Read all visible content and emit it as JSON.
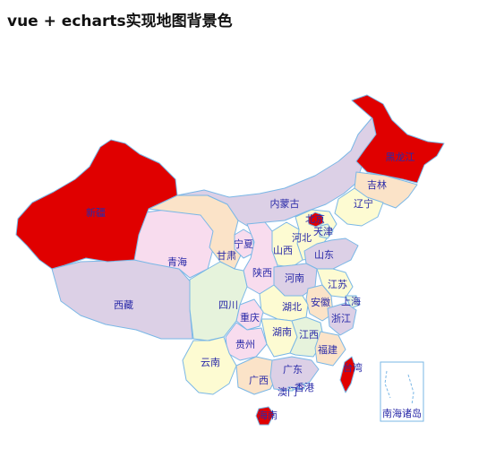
{
  "page": {
    "title": "vue + echarts实现地图背景色"
  },
  "colors": {
    "highlight": "#e00000",
    "border": "#7ab7e6",
    "label": "#2a2aa8",
    "lavender": "#dcd0e6",
    "peach": "#fbe3c8",
    "pink": "#f8dcee",
    "cream": "#fdfbd2",
    "mint": "#e6f3dc"
  },
  "map": {
    "highlighted": [
      "新疆",
      "黑龙江",
      "北京",
      "台湾",
      "海南"
    ],
    "provinces": {
      "heilongjiang": "黑龙江",
      "jilin": "吉林",
      "liaoning": "辽宁",
      "neimenggu": "内蒙古",
      "beijing": "北京",
      "tianjin": "天津",
      "hebei": "河北",
      "shanxi": "山西",
      "shandong": "山东",
      "xinjiang": "新疆",
      "qinghai": "青海",
      "gansu": "甘肃",
      "ningxia": "宁夏",
      "shaanxi": "陕西",
      "henan": "河南",
      "jiangsu": "江苏",
      "shanghai": "上海",
      "anhui": "安徽",
      "xizang": "西藏",
      "sichuan": "四川",
      "chongqing": "重庆",
      "hubei": "湖北",
      "zhejiang": "浙江",
      "guizhou": "贵州",
      "hunan": "湖南",
      "jiangxi": "江西",
      "fujian": "福建",
      "yunnan": "云南",
      "guangxi": "广西",
      "guangdong": "广东",
      "taiwan": "台湾",
      "xianggang": "香港",
      "aomen": "澳门",
      "hainan": "海南",
      "nanhai": "南海诸岛"
    }
  }
}
